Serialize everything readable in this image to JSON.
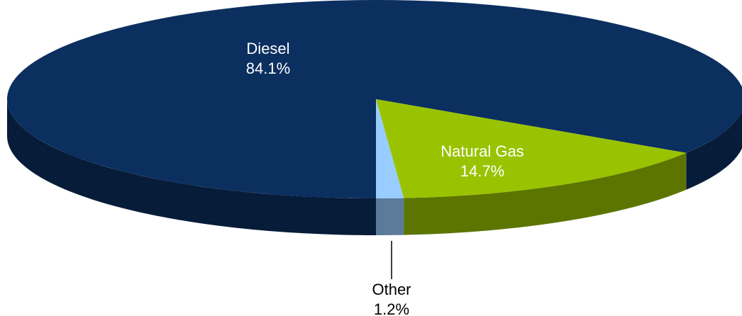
{
  "chart_data": {
    "type": "pie",
    "categories": [
      "Diesel",
      "Natural Gas",
      "Other"
    ],
    "values": [
      84.1,
      14.7,
      1.2
    ],
    "value_labels": [
      "84.1%",
      "14.7%",
      "1.2%"
    ],
    "colors": [
      "#0b2f5f",
      "#99c300",
      "#99ccff"
    ]
  }
}
